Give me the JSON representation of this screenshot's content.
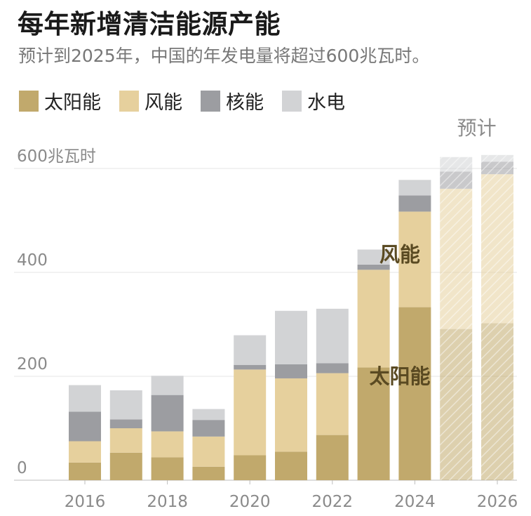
{
  "title": "每年新增清洁能源产能",
  "subtitle": "预计到2025年，中国的年发电量将超过600兆瓦时。",
  "colors": {
    "solar": "#c1a96c",
    "wind": "#e6d09d",
    "nuclear": "#9c9da1",
    "hydro": "#d2d3d5",
    "projected_hatch": "#b9a474"
  },
  "chart_data": {
    "type": "bar",
    "stacked": true,
    "title": "每年新增清洁能源产能",
    "unit_label": "600兆瓦时",
    "ylim": [
      0,
      600
    ],
    "yticks": [
      0,
      200,
      400,
      600
    ],
    "ytick_labels": [
      "0",
      "200",
      "400",
      "600兆瓦时"
    ],
    "xtick_labels": [
      "2016",
      "2018",
      "2020",
      "2022",
      "2024",
      "2026"
    ],
    "categories": [
      "2016",
      "2017",
      "2018",
      "2019",
      "2020",
      "2021",
      "2022",
      "2023",
      "2024",
      "2025",
      "2026"
    ],
    "projected_from_index": 9,
    "projected_label": "预计",
    "series": [
      {
        "name": "太阳能",
        "key": "solar",
        "values": [
          34,
          53,
          44,
          26,
          48,
          55,
          87,
          217,
          333,
          291,
          302
        ]
      },
      {
        "name": "风能",
        "key": "wind",
        "values": [
          41,
          47,
          50,
          58,
          165,
          141,
          119,
          188,
          184,
          270,
          287
        ]
      },
      {
        "name": "核能",
        "key": "nuclear",
        "values": [
          57,
          17,
          70,
          32,
          9,
          27,
          19,
          10,
          31,
          33,
          24
        ]
      },
      {
        "name": "水电",
        "key": "hydro",
        "values": [
          51,
          56,
          37,
          21,
          57,
          103,
          105,
          29,
          30,
          28,
          13
        ]
      }
    ],
    "annotations": [
      {
        "text": "风能",
        "series": "wind"
      },
      {
        "text": "太阳能",
        "series": "solar"
      }
    ]
  }
}
